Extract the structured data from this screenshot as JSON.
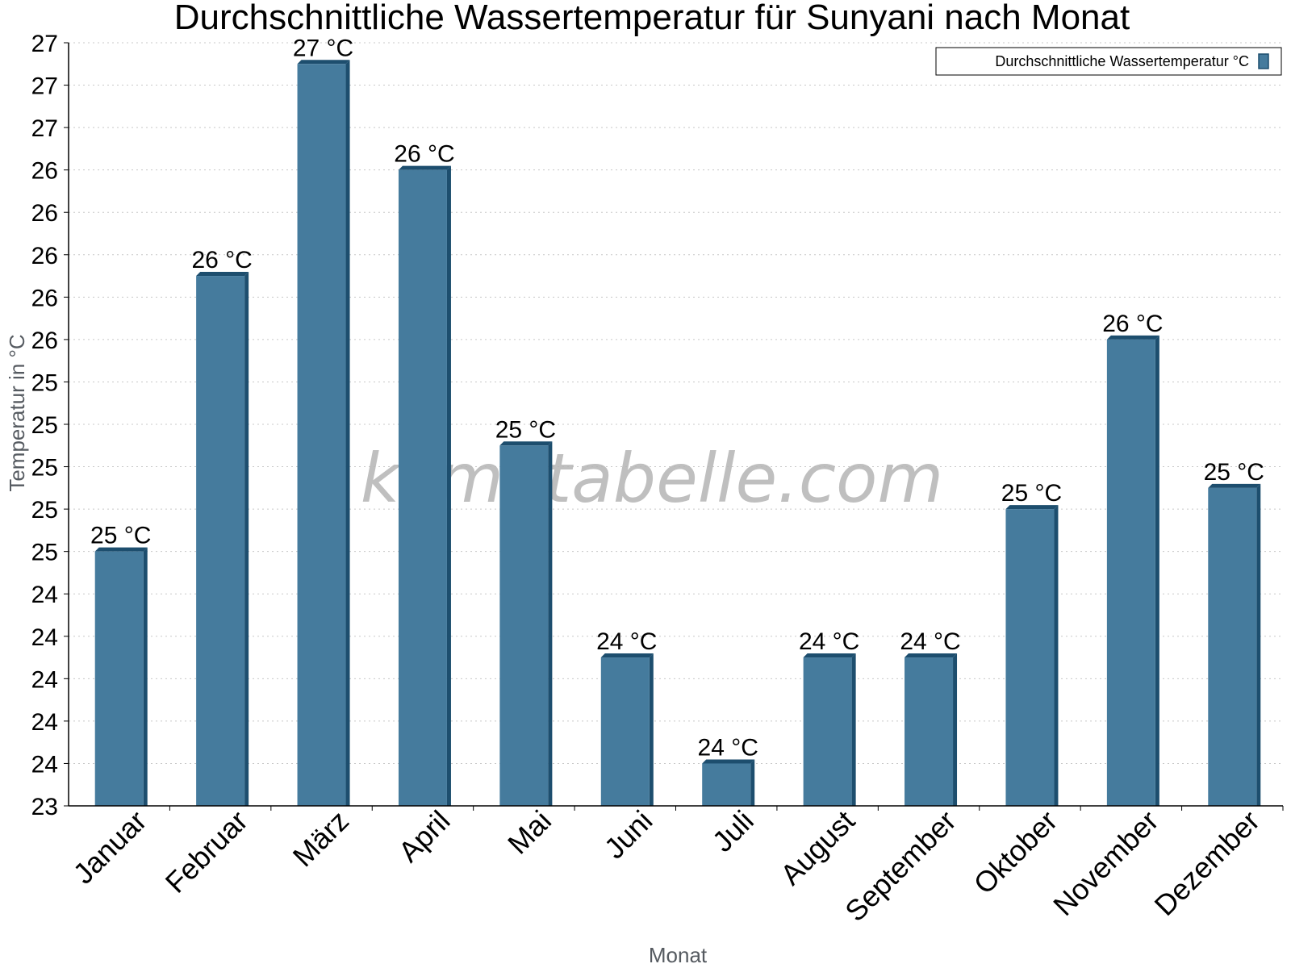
{
  "chart_data": {
    "type": "bar",
    "title": "Durchschnittliche Wassertemperatur für Sunyani nach Monat",
    "xlabel": "Monat",
    "ylabel": "Temperatur in °C",
    "categories": [
      "Januar",
      "Februar",
      "März",
      "April",
      "Mai",
      "Juni",
      "Juli",
      "August",
      "September",
      "Oktober",
      "November",
      "Dezember"
    ],
    "series": [
      {
        "name": "Durchschnittliche Wassertemperatur °C",
        "values": [
          24.55,
          25.85,
          26.85,
          26.35,
          25.05,
          24.05,
          23.55,
          24.05,
          24.05,
          24.75,
          25.55,
          24.85
        ],
        "labels": [
          "25 °C",
          "26 °C",
          "27 °C",
          "26 °C",
          "25 °C",
          "24 °C",
          "24 °C",
          "24 °C",
          "24 °C",
          "25 °C",
          "26 °C",
          "25 °C"
        ],
        "color": "#457b9d"
      }
    ],
    "ylim": [
      23.35,
      26.95
    ],
    "yticks": [
      {
        "value": 23.35,
        "label": "23"
      },
      {
        "value": 23.55,
        "label": "24"
      },
      {
        "value": 23.75,
        "label": "24"
      },
      {
        "value": 23.95,
        "label": "24"
      },
      {
        "value": 24.15,
        "label": "24"
      },
      {
        "value": 24.35,
        "label": "24"
      },
      {
        "value": 24.55,
        "label": "25"
      },
      {
        "value": 24.75,
        "label": "25"
      },
      {
        "value": 24.95,
        "label": "25"
      },
      {
        "value": 25.15,
        "label": "25"
      },
      {
        "value": 25.35,
        "label": "25"
      },
      {
        "value": 25.55,
        "label": "26"
      },
      {
        "value": 25.75,
        "label": "26"
      },
      {
        "value": 25.95,
        "label": "26"
      },
      {
        "value": 26.15,
        "label": "26"
      },
      {
        "value": 26.35,
        "label": "26"
      },
      {
        "value": 26.55,
        "label": "27"
      },
      {
        "value": 26.75,
        "label": "27"
      },
      {
        "value": 26.95,
        "label": "27"
      }
    ],
    "grid": true,
    "legend": "top-right",
    "watermark": "klimatabelle.com",
    "colors": {
      "bar": "#457b9d",
      "bar_edge": "#1d4e6e",
      "grid": "#c8c8c8",
      "axis": "#000000"
    }
  }
}
